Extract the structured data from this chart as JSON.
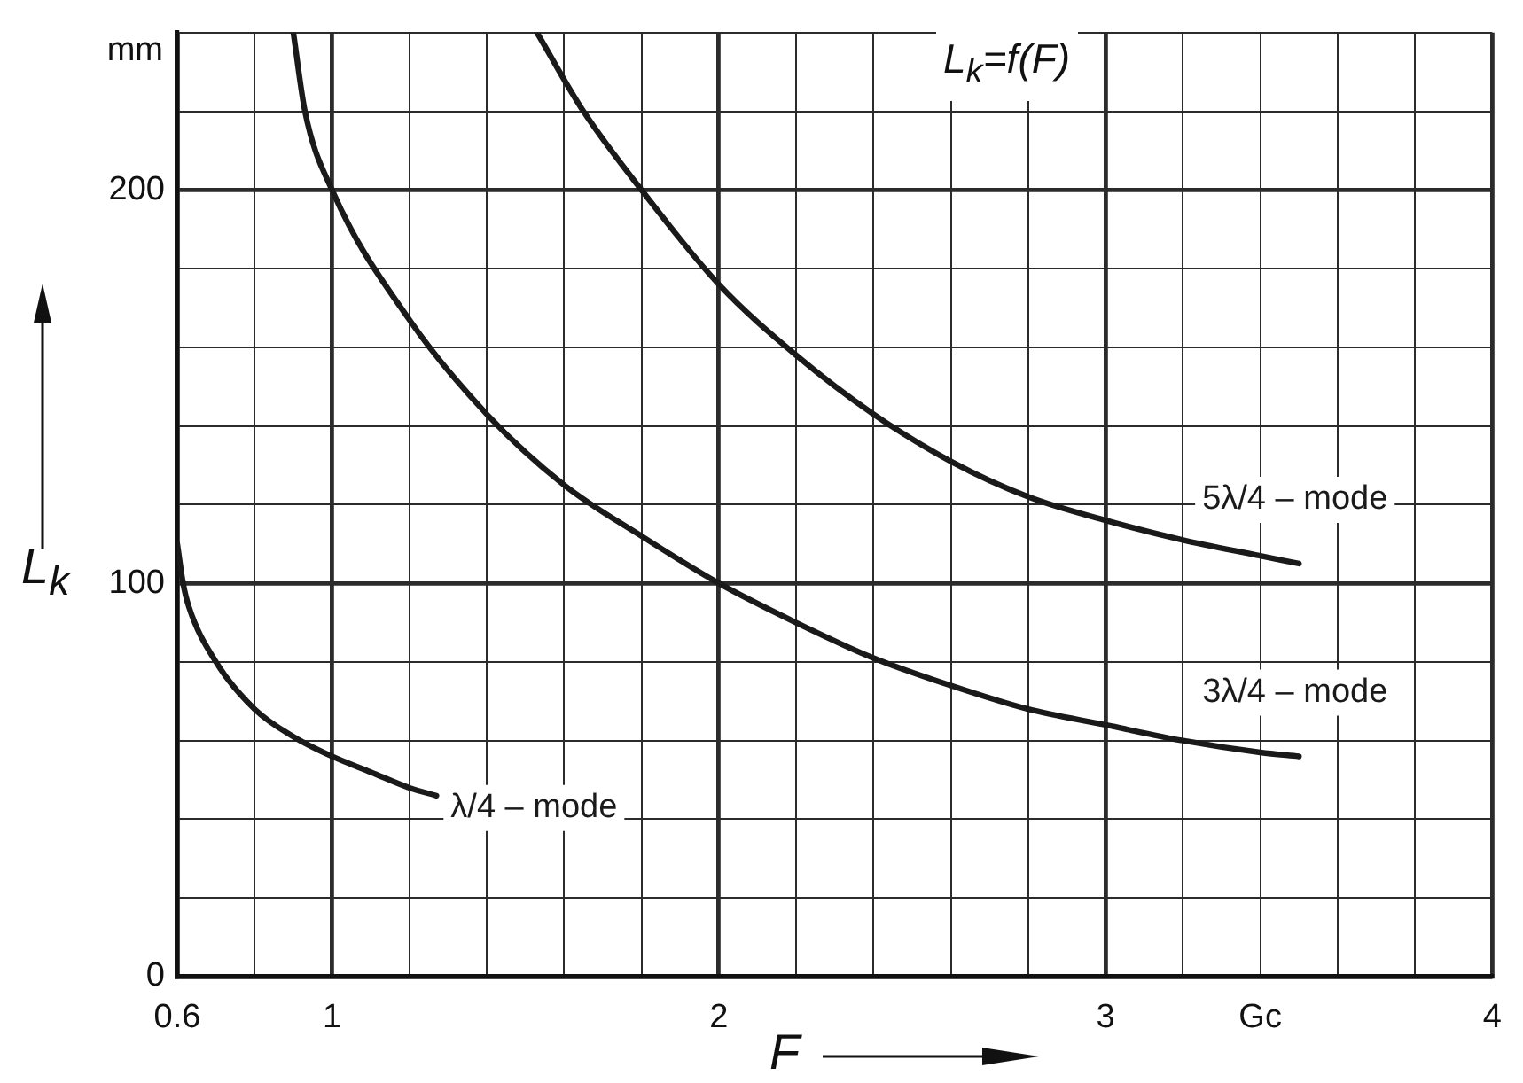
{
  "chart_data": {
    "type": "line",
    "title": "L$_{k}$=f(F)",
    "xlabel": "F",
    "ylabel": "L$_{k}$",
    "annotations": [
      "mm"
    ],
    "xlim": [
      0.6,
      4
    ],
    "xticks": [
      0.6,
      {
        "value": 0.8,
        "label": null
      },
      1,
      {
        "value": 1.2,
        "label": null
      },
      {
        "value": 1.4,
        "label": null
      },
      {
        "value": 1.6,
        "label": null
      },
      {
        "value": 1.8,
        "label": null
      },
      2,
      {
        "value": 2.2,
        "label": null
      },
      {
        "value": 2.4,
        "label": null
      },
      {
        "value": 2.6,
        "label": null
      },
      {
        "value": 2.8,
        "label": null
      },
      3,
      {
        "value": 3.2,
        "label": null
      },
      {
        "value": 3.4,
        "label": "Gc"
      },
      {
        "value": 3.6,
        "label": null
      },
      {
        "value": 3.8,
        "label": null
      },
      4
    ],
    "ylim": [
      0,
      240
    ],
    "yticks": [
      0,
      {
        "value": 20,
        "label": null
      },
      {
        "value": 40,
        "label": null
      },
      {
        "value": 60,
        "label": null
      },
      {
        "value": 80,
        "label": null
      },
      100,
      {
        "value": 120,
        "label": null
      },
      {
        "value": 140,
        "label": null
      },
      {
        "value": 160,
        "label": null
      },
      {
        "value": 180,
        "label": null
      },
      200,
      {
        "value": 220,
        "label": null
      },
      {
        "value": 240,
        "label": null
      }
    ],
    "grid": true,
    "marker": "none",
    "line_style": "solid",
    "series": [
      {
        "name": "λ/4 – mode",
        "color": "#1a1a1a",
        "x": [
          0.6,
          0.615,
          0.63,
          0.7,
          0.8,
          0.9,
          1.0,
          1.1,
          1.2,
          1.27
        ],
        "values": [
          110,
          100,
          94,
          80,
          68,
          61,
          56,
          52,
          48,
          46
        ]
      },
      {
        "name": "3λ/4 – mode",
        "color": "#1a1a1a",
        "x": [
          0.9,
          0.93,
          1.0,
          1.2,
          1.4,
          1.6,
          1.8,
          2.0,
          2.2,
          2.4,
          2.6,
          2.8,
          3.0,
          3.2,
          3.4,
          3.5
        ],
        "values": [
          240,
          220,
          200,
          167,
          143,
          125,
          112,
          100,
          90,
          81,
          74,
          68,
          64,
          60,
          57,
          56
        ]
      },
      {
        "name": "5λ/4 – mode",
        "color": "#1a1a1a",
        "x": [
          1.53,
          1.65,
          1.8,
          2.0,
          2.2,
          2.4,
          2.6,
          2.8,
          3.0,
          3.2,
          3.4,
          3.5
        ],
        "values": [
          240,
          220,
          200,
          176,
          158,
          143,
          131,
          122,
          116,
          111,
          107,
          105
        ]
      }
    ]
  }
}
